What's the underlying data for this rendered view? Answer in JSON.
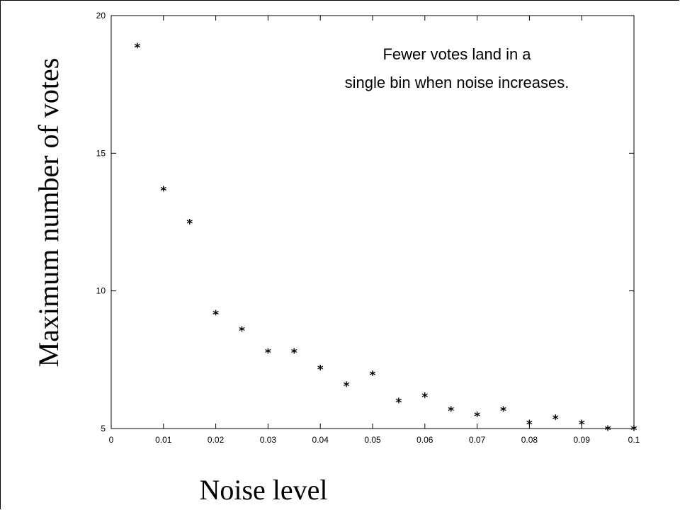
{
  "chart_data": {
    "type": "scatter",
    "title": "",
    "xlabel": "Noise level",
    "ylabel": "Maximum number of votes",
    "xlim": [
      0,
      0.1
    ],
    "ylim": [
      5,
      20
    ],
    "xticks": [
      0,
      0.01,
      0.02,
      0.03,
      0.04,
      0.05,
      0.06,
      0.07,
      0.08,
      0.09,
      0.1
    ],
    "xtick_labels": [
      "0",
      "0.01",
      "0.02",
      "0.03",
      "0.04",
      "0.05",
      "0.06",
      "0.07",
      "0.08",
      "0.09",
      "0.1"
    ],
    "yticks": [
      5,
      10,
      15,
      20
    ],
    "ytick_labels": [
      "5",
      "10",
      "15",
      "20"
    ],
    "marker": "*",
    "grid": false,
    "series": [
      {
        "x": [
          0.005,
          0.01,
          0.015,
          0.02,
          0.025,
          0.03,
          0.035,
          0.04,
          0.045,
          0.05,
          0.055,
          0.06,
          0.065,
          0.07,
          0.075,
          0.08,
          0.085,
          0.09,
          0.095,
          0.1
        ],
        "y": [
          18.9,
          13.7,
          12.5,
          9.2,
          8.6,
          7.8,
          7.8,
          7.2,
          6.6,
          7.0,
          6.0,
          6.2,
          5.7,
          5.5,
          5.7,
          5.2,
          5.4,
          5.2,
          5.0,
          5.0
        ]
      }
    ],
    "annotation": {
      "line1": "Fewer votes land in a",
      "line2": "single bin when noise increases."
    }
  }
}
